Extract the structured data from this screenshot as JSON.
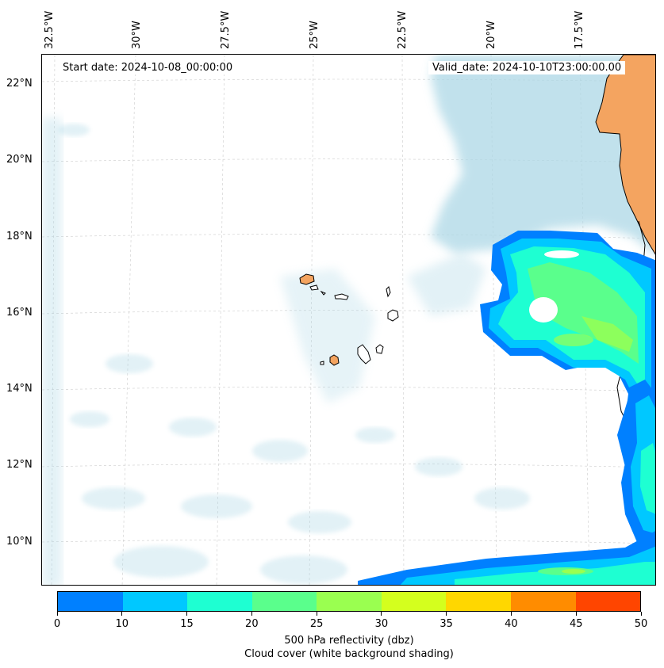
{
  "map": {
    "start_date": "Start date: 2024-10-08_00:00:00",
    "valid_date": "Valid_date: 2024-10-10T23:00:00.00",
    "lon_labels": [
      "32.5°W",
      "30°W",
      "27.5°W",
      "25°W",
      "22.5°W",
      "20°W",
      "17.5°W"
    ],
    "lat_labels": [
      "22°N",
      "20°N",
      "18°N",
      "16°N",
      "14°N",
      "12°N",
      "10°N"
    ],
    "gridlines": true,
    "colors": {
      "cloud": "#add8e6",
      "land": "#f4a460",
      "coastline": "#000000"
    }
  },
  "colorbar": {
    "ticks": [
      "0",
      "10",
      "15",
      "20",
      "25",
      "30",
      "35",
      "40",
      "45",
      "50"
    ],
    "colors": [
      "#0080ff",
      "#00c8ff",
      "#1effd2",
      "#5aff8c",
      "#9aff50",
      "#d4ff1e",
      "#ffd700",
      "#ff8c00",
      "#ff4500"
    ],
    "label_line1": "500 hPa reflectivity (dbz)",
    "label_line2": "Cloud cover (white background shading)"
  }
}
